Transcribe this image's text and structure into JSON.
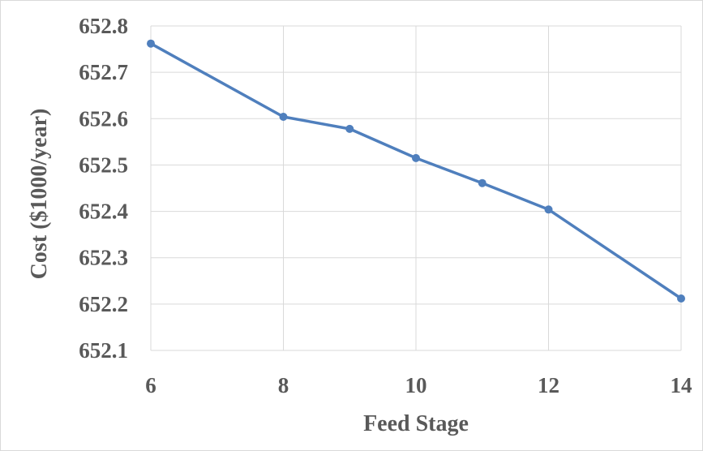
{
  "chart_data": {
    "type": "line",
    "title": "",
    "xlabel": "Feed Stage",
    "ylabel": "Cost ($1000/year)",
    "xlim": [
      6,
      14
    ],
    "ylim": [
      652.1,
      652.8
    ],
    "xticks": [
      "6",
      "8",
      "10",
      "12",
      "14"
    ],
    "yticks": [
      "652.1",
      "652.2",
      "652.3",
      "652.4",
      "652.5",
      "652.6",
      "652.7",
      "652.8"
    ],
    "grid": true,
    "legend": "none",
    "colors": {
      "series": "#4f7fbd",
      "grid": "#d9d9d9",
      "text": "#595959"
    },
    "series": [
      {
        "x": [
          6,
          8,
          9,
          10,
          11,
          12,
          14
        ],
        "y": [
          652.762,
          652.604,
          652.578,
          652.515,
          652.461,
          652.404,
          652.212
        ]
      }
    ]
  }
}
